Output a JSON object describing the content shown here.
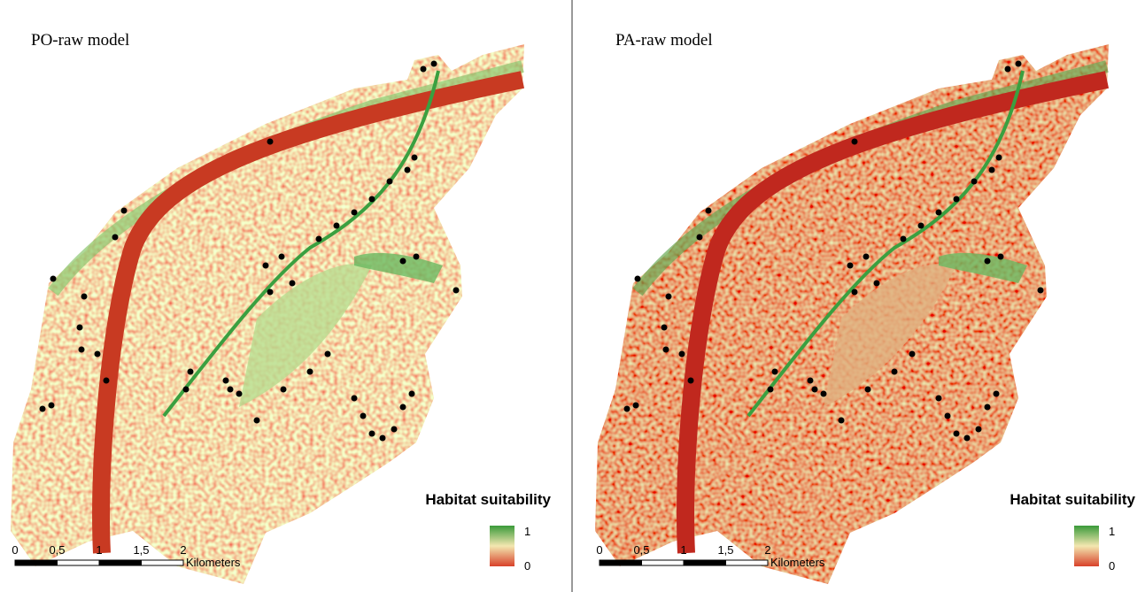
{
  "panels": [
    {
      "title": "PO-raw model",
      "legend_title": "Habitat suitability",
      "legend_high": "1",
      "legend_low": "0",
      "scale_labels": [
        "0",
        "0,5",
        "1",
        "1,5",
        "2"
      ],
      "scale_unit": "Kilometers"
    },
    {
      "title": "PA-raw model",
      "legend_title": "Habitat suitability",
      "legend_high": "1",
      "legend_low": "0",
      "scale_labels": [
        "0",
        "0,5",
        "1",
        "1,5",
        "2"
      ],
      "scale_unit": "Kilometers"
    }
  ]
}
